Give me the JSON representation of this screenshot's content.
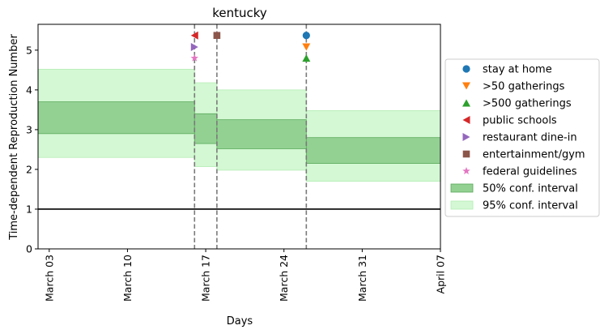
{
  "chart_data": {
    "type": "area",
    "title": "kentucky",
    "xlabel": "Days",
    "ylabel": "Time-dependent Reproduction Number",
    "x_range": [
      "2020-03-02",
      "2020-04-07"
    ],
    "ylim": [
      0,
      5.65
    ],
    "y_ticks": [
      0,
      1,
      2,
      3,
      4,
      5
    ],
    "x_ticks": [
      {
        "date": "2020-03-03",
        "label": "March 03"
      },
      {
        "date": "2020-03-10",
        "label": "March 10"
      },
      {
        "date": "2020-03-17",
        "label": "March 17"
      },
      {
        "date": "2020-03-24",
        "label": "March 24"
      },
      {
        "date": "2020-03-31",
        "label": "March 31"
      },
      {
        "date": "2020-04-07",
        "label": "April 07"
      }
    ],
    "grid": false,
    "reference_line": 1,
    "intervals": [
      {
        "start": "2020-03-02",
        "end": "2020-03-16",
        "ci50": [
          2.9,
          3.7
        ],
        "ci95": [
          2.3,
          4.52
        ]
      },
      {
        "start": "2020-03-16",
        "end": "2020-03-18",
        "ci50": [
          2.65,
          3.4
        ],
        "ci95": [
          2.07,
          4.18
        ]
      },
      {
        "start": "2020-03-18",
        "end": "2020-03-26",
        "ci50": [
          2.52,
          3.25
        ],
        "ci95": [
          1.98,
          4.0
        ]
      },
      {
        "start": "2020-03-26",
        "end": "2020-04-07",
        "ci50": [
          2.15,
          2.8
        ],
        "ci95": [
          1.7,
          3.48
        ]
      }
    ],
    "intervention_lines": [
      "2020-03-16",
      "2020-03-18",
      "2020-03-26"
    ],
    "interventions": [
      {
        "name": "stay at home",
        "date": "2020-03-26",
        "y": 5.37,
        "marker": "circle",
        "color": "#1f77b4"
      },
      {
        "name": ">50 gatherings",
        "date": "2020-03-26",
        "y": 5.08,
        "marker": "triangle-down",
        "color": "#ff7f0e"
      },
      {
        "name": ">500 gatherings",
        "date": "2020-03-26",
        "y": 4.8,
        "marker": "triangle-up",
        "color": "#2ca02c"
      },
      {
        "name": "public schools",
        "date": "2020-03-16",
        "y": 5.37,
        "marker": "triangle-left",
        "color": "#d62728"
      },
      {
        "name": "restaurant dine-in",
        "date": "2020-03-16",
        "y": 5.08,
        "marker": "triangle-right",
        "color": "#9467bd"
      },
      {
        "name": "entertainment/gym",
        "date": "2020-03-18",
        "y": 5.37,
        "marker": "square",
        "color": "#8c564b"
      },
      {
        "name": "federal guidelines",
        "date": "2020-03-16",
        "y": 4.8,
        "marker": "star",
        "color": "#e377c2"
      }
    ],
    "band_legend": [
      {
        "name": "50% conf. interval",
        "color": "#93d193",
        "edge": "#5aa85a"
      },
      {
        "name": "95% conf. interval",
        "color": "#d3f8d3",
        "edge": "#b6ecb6"
      }
    ],
    "legend_position": "right"
  }
}
